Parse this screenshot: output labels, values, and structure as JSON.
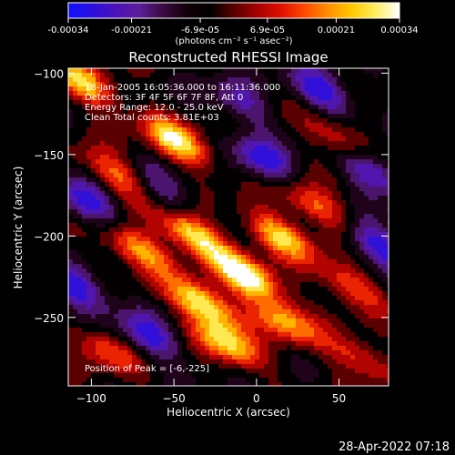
{
  "colorbar": {
    "tick_labels": [
      "-0.00034",
      "-0.00021",
      "-6.9e-05",
      "6.9e-05",
      "0.00021",
      "0.00034"
    ],
    "tick_values": [
      -0.00034,
      -0.00021,
      -6.9e-05,
      6.9e-05,
      0.00021,
      0.00034
    ],
    "range": [
      -0.00034,
      0.00034
    ],
    "units": "(photons cm⁻² s⁻¹ asec⁻²)",
    "palette": [
      "#1010ff",
      "#2c10e0",
      "#4a12b8",
      "#5c1e9a",
      "#3a0a40",
      "#120008",
      "#000000",
      "#5a0000",
      "#a80000",
      "#e01000",
      "#ff4a00",
      "#ff9000",
      "#ffc800",
      "#ffee60",
      "#ffffff"
    ]
  },
  "plot": {
    "title": "Reconstructed RHESSI Image",
    "annotations": {
      "time": "18-Jan-2005 16:05:36.000 to 16:11:36.000",
      "detectors": "Detectors: 3F 4F 5F 6F 7F 8F, Att 0",
      "energy": "Energy Range: 12.0 - 25.0 keV",
      "clean": "Clean   Total counts: 3.81E+03",
      "peak": "Position of Peak = [-6,-225]"
    },
    "timestamp": "28-Apr-2022 07:18"
  },
  "chart_data": {
    "type": "heatmap",
    "title": "Reconstructed RHESSI Image",
    "xlabel": "Heliocentric X (arcsec)",
    "ylabel": "Heliocentric Y (arcsec)",
    "xlim": [
      -114,
      80
    ],
    "ylim": [
      -292,
      -97
    ],
    "x_ticks": [
      -100,
      -50,
      0,
      50
    ],
    "y_ticks": [
      -100,
      -150,
      -200,
      -250
    ],
    "x_tick_labels": [
      "−100",
      "−50",
      "0",
      "50"
    ],
    "y_tick_labels": [
      "−100",
      "−150",
      "−200",
      "−250"
    ],
    "colorbar_range": [
      -0.00034,
      0.00034
    ],
    "peak_position": [
      -6,
      -225
    ],
    "energy_range_keV": [
      12.0,
      25.0
    ],
    "total_counts": 3810,
    "bright_sources": [
      {
        "x": -6,
        "y": -225,
        "peak": 1.0
      },
      {
        "x": -32,
        "y": -242,
        "peak": 0.95
      },
      {
        "x": -18,
        "y": -266,
        "peak": 0.78
      },
      {
        "x": -38,
        "y": -200,
        "peak": 0.9
      },
      {
        "x": -72,
        "y": -208,
        "peak": 0.7
      },
      {
        "x": -48,
        "y": -142,
        "peak": 0.86
      },
      {
        "x": -105,
        "y": -106,
        "peak": 0.72
      },
      {
        "x": -84,
        "y": -163,
        "peak": 0.55
      },
      {
        "x": 14,
        "y": -200,
        "peak": 0.75
      },
      {
        "x": 16,
        "y": -252,
        "peak": 0.66
      },
      {
        "x": 36,
        "y": -182,
        "peak": 0.55
      },
      {
        "x": -92,
        "y": -270,
        "peak": 0.45
      },
      {
        "x": 56,
        "y": -230,
        "peak": 0.5
      },
      {
        "x": 62,
        "y": -275,
        "peak": 0.45
      },
      {
        "x": 50,
        "y": -140,
        "peak": 0.45
      }
    ],
    "dark_sources": [
      {
        "x": -102,
        "y": -180,
        "depth": 0.9
      },
      {
        "x": -108,
        "y": -232,
        "depth": 0.95
      },
      {
        "x": -64,
        "y": -262,
        "depth": 0.8
      },
      {
        "x": 4,
        "y": -153,
        "depth": 0.85
      },
      {
        "x": 40,
        "y": -112,
        "depth": 0.9
      },
      {
        "x": 70,
        "y": -160,
        "depth": 0.9
      },
      {
        "x": 72,
        "y": -205,
        "depth": 0.9
      },
      {
        "x": -56,
        "y": -172,
        "depth": 0.55
      },
      {
        "x": -10,
        "y": -118,
        "depth": 0.6
      }
    ]
  }
}
